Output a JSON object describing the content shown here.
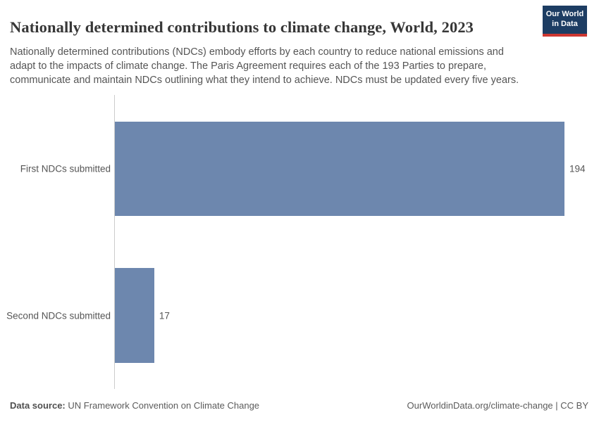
{
  "header": {
    "title": "Nationally determined contributions to climate change, World, 2023",
    "subtitle": "Nationally determined contributions (NDCs) embody efforts by each country to reduce national emissions and adapt to the impacts of climate change. The Paris Agreement requires each of the 193 Parties to prepare, communicate and maintain NDCs outlining what they intend to achieve. NDCs must be updated every five years."
  },
  "logo": {
    "line1": "Our World",
    "line2": "in Data",
    "bg_color": "#1d3d63",
    "accent_color": "#cd3731"
  },
  "chart_data": {
    "type": "bar",
    "orientation": "horizontal",
    "title": "Nationally determined contributions to climate change, World, 2023",
    "categories": [
      "First NDCs submitted",
      "Second NDCs submitted"
    ],
    "values": [
      194,
      17
    ],
    "bar_color": "#6d87ae",
    "axis_color": "#cccccc",
    "xlim": [
      0,
      194
    ],
    "grid": false,
    "legend": "none",
    "xlabel": "",
    "ylabel": ""
  },
  "footer": {
    "source_label": "Data source:",
    "source_text": " UN Framework Convention on Climate Change",
    "credit": "OurWorldinData.org/climate-change | CC BY"
  }
}
